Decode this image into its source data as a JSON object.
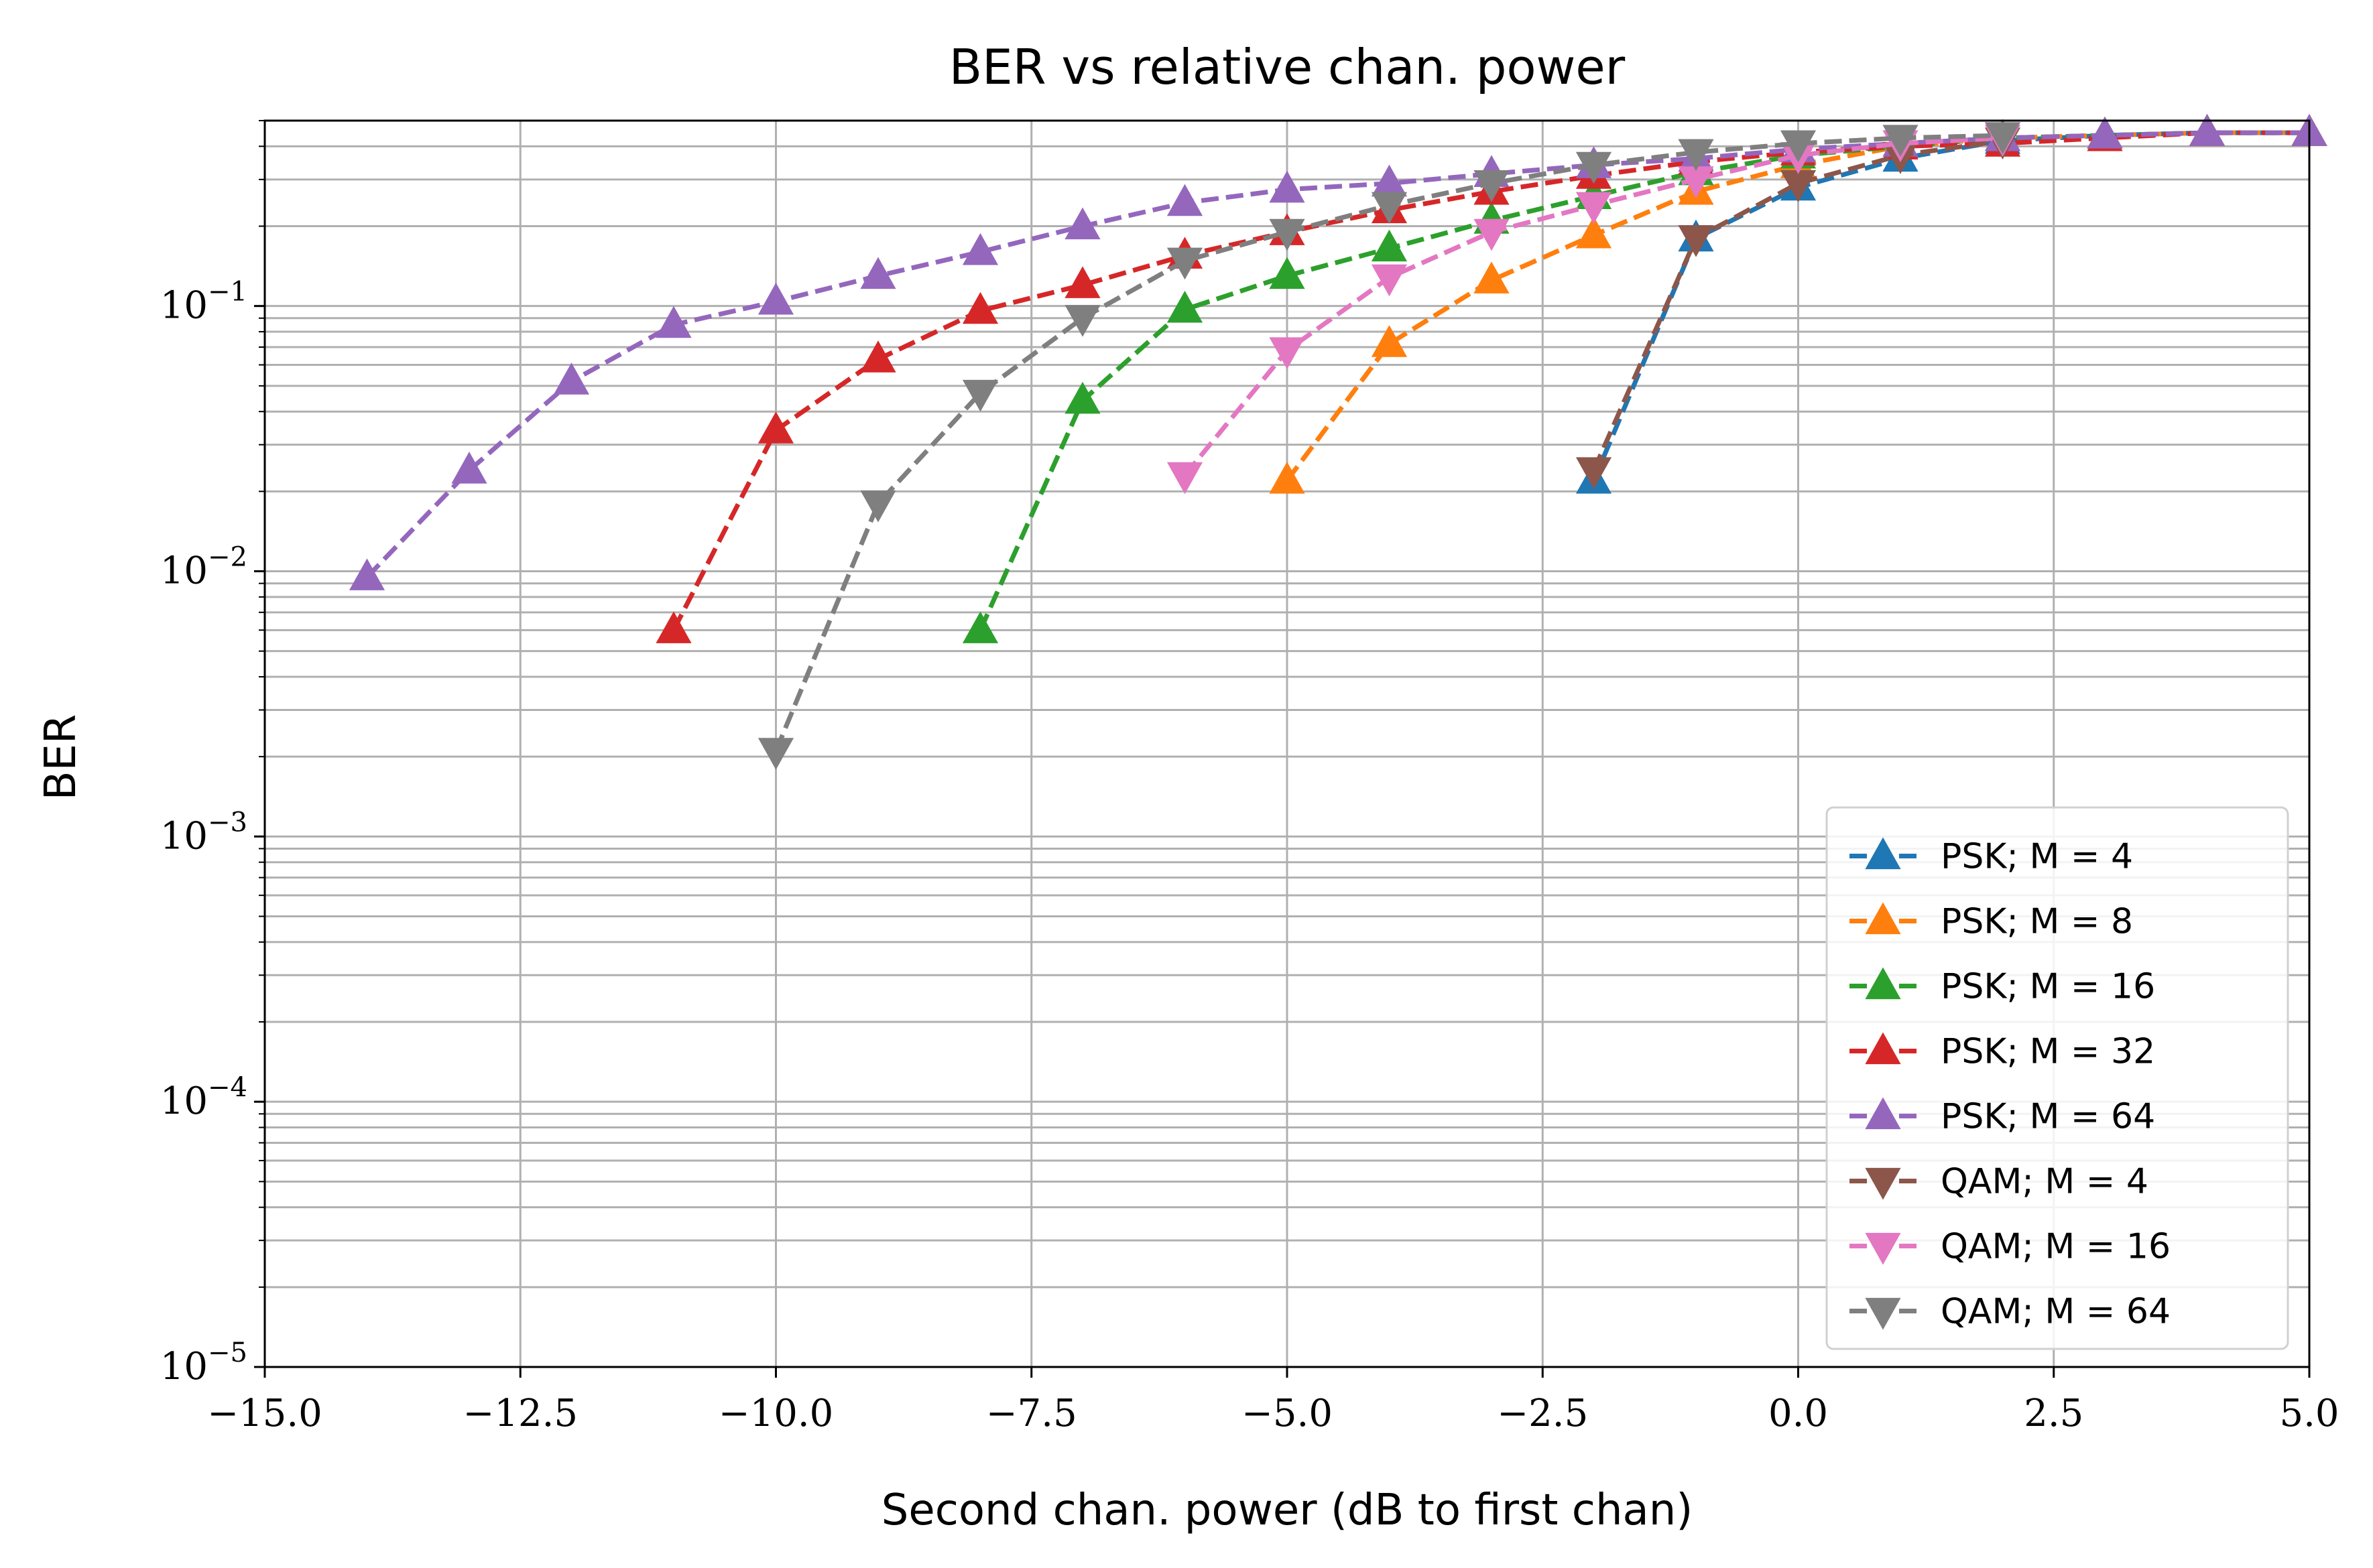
{
  "chart_data": {
    "type": "line",
    "title": "BER vs relative chan. power",
    "xlabel": "Second chan. power (dB to first chan)",
    "ylabel": "BER",
    "xlim": [
      -15,
      5
    ],
    "ylim": [
      1e-05,
      0.5
    ],
    "yscale": "log",
    "grid": true,
    "legend_position": "lower-right",
    "x_ticks": [
      -15,
      -12.5,
      -10,
      -7.5,
      -5,
      -2.5,
      0,
      2.5,
      5
    ],
    "x_tick_labels": [
      "−15.0",
      "−12.5",
      "−10.0",
      "−7.5",
      "−5.0",
      "−2.5",
      "0.0",
      "2.5",
      "5.0"
    ],
    "y_ticks": [
      1e-05,
      0.0001,
      0.001,
      0.01,
      0.1
    ],
    "y_tick_labels": [
      {
        "base": "10",
        "exp": "−5"
      },
      {
        "base": "10",
        "exp": "−4"
      },
      {
        "base": "10",
        "exp": "−3"
      },
      {
        "base": "10",
        "exp": "−2"
      },
      {
        "base": "10",
        "exp": "−1"
      }
    ],
    "series": [
      {
        "name": "PSK; M = 4",
        "color": "#1f77b4",
        "marker": "triangle-up",
        "x": [
          -2,
          -1,
          0,
          1,
          2,
          3,
          4,
          5
        ],
        "y": [
          0.022,
          0.18,
          0.28,
          0.36,
          0.42,
          0.44,
          0.45,
          0.45
        ]
      },
      {
        "name": "PSK; M = 8",
        "color": "#ff7f0e",
        "marker": "triangle-up",
        "x": [
          -5,
          -4,
          -3,
          -2,
          -1,
          0,
          1,
          2,
          3,
          4,
          5
        ],
        "y": [
          0.022,
          0.072,
          0.125,
          0.185,
          0.27,
          0.34,
          0.4,
          0.43,
          0.44,
          0.45,
          0.45
        ]
      },
      {
        "name": "PSK; M = 16",
        "color": "#2ca02c",
        "marker": "triangle-up",
        "x": [
          -8,
          -7,
          -6,
          -5,
          -4,
          -3,
          -2,
          -1,
          0,
          1,
          2,
          3,
          4,
          5
        ],
        "y": [
          0.006,
          0.044,
          0.097,
          0.13,
          0.165,
          0.21,
          0.26,
          0.32,
          0.37,
          0.4,
          0.43,
          0.44,
          0.45,
          0.45
        ]
      },
      {
        "name": "PSK; M = 32",
        "color": "#d62728",
        "marker": "triangle-up",
        "x": [
          -11,
          -10,
          -9,
          -8,
          -7,
          -6,
          -5,
          -4,
          -3,
          -2,
          -1,
          0,
          1,
          2,
          3,
          4,
          5
        ],
        "y": [
          0.006,
          0.034,
          0.063,
          0.096,
          0.12,
          0.155,
          0.19,
          0.23,
          0.27,
          0.31,
          0.35,
          0.38,
          0.4,
          0.41,
          0.43,
          0.45,
          0.45
        ]
      },
      {
        "name": "PSK; M = 64",
        "color": "#9467bd",
        "marker": "triangle-up",
        "x": [
          -14,
          -13,
          -12,
          -11,
          -10,
          -9,
          -8,
          -7,
          -6,
          -5,
          -4,
          -3,
          -2,
          -1,
          0,
          1,
          2,
          3,
          4,
          5
        ],
        "y": [
          0.0095,
          0.024,
          0.052,
          0.085,
          0.104,
          0.13,
          0.16,
          0.2,
          0.245,
          0.275,
          0.29,
          0.315,
          0.34,
          0.36,
          0.39,
          0.41,
          0.43,
          0.44,
          0.45,
          0.45
        ]
      },
      {
        "name": "QAM; M = 4",
        "color": "#8c564b",
        "marker": "triangle-down",
        "x": [
          -2,
          -1,
          0,
          1,
          2
        ],
        "y": [
          0.024,
          0.18,
          0.29,
          0.37,
          0.42
        ]
      },
      {
        "name": "QAM; M = 16",
        "color": "#e377c2",
        "marker": "triangle-down",
        "x": [
          -6,
          -5,
          -4,
          -3,
          -2,
          -1,
          0,
          1,
          2
        ],
        "y": [
          0.023,
          0.068,
          0.128,
          0.19,
          0.24,
          0.3,
          0.37,
          0.41,
          0.43
        ]
      },
      {
        "name": "QAM; M = 64",
        "color": "#7f7f7f",
        "marker": "triangle-down",
        "x": [
          -10,
          -9,
          -8,
          -7,
          -6,
          -5,
          -4,
          -3,
          -2,
          -1,
          0,
          1,
          2
        ],
        "y": [
          0.0021,
          0.018,
          0.047,
          0.09,
          0.148,
          0.19,
          0.24,
          0.29,
          0.34,
          0.38,
          0.41,
          0.43,
          0.44
        ]
      }
    ]
  }
}
